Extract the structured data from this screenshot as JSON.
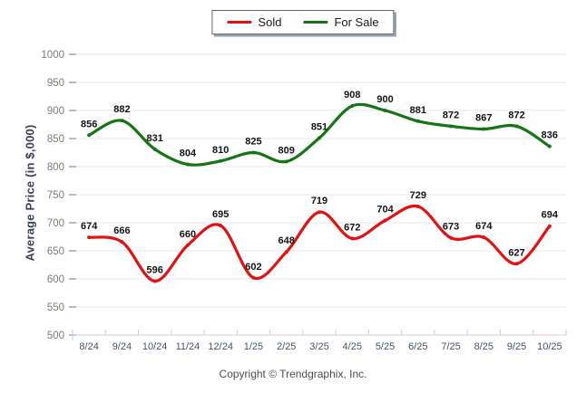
{
  "legend": {
    "items": [
      {
        "label": "Sold",
        "color": "#e01212"
      },
      {
        "label": "For Sale",
        "color": "#157515"
      }
    ]
  },
  "y_axis_title": "Average Price (in $,000)",
  "footer": "Copyright © Trendgraphix, Inc.",
  "chart_data": {
    "type": "line",
    "title": "",
    "xlabel": "",
    "ylabel": "Average Price (in $,000)",
    "categories": [
      "8/24",
      "9/24",
      "10/24",
      "11/24",
      "12/24",
      "1/25",
      "2/25",
      "3/25",
      "4/25",
      "5/25",
      "6/25",
      "7/25",
      "8/25",
      "9/25",
      "10/25"
    ],
    "series": [
      {
        "name": "Sold",
        "color": "#e01212",
        "values": [
          674,
          666,
          596,
          660,
          695,
          602,
          648,
          719,
          672,
          704,
          729,
          673,
          674,
          627,
          694
        ]
      },
      {
        "name": "For Sale",
        "color": "#157515",
        "values": [
          856,
          882,
          831,
          804,
          810,
          825,
          809,
          851,
          908,
          900,
          881,
          872,
          867,
          872,
          836
        ]
      }
    ],
    "ylim": [
      500,
      1000
    ],
    "ytick_step": 50,
    "grid": "horizontal",
    "legend_position": "top-center",
    "data_labels": true
  },
  "style": {
    "grid_color": "#e9e9e9",
    "baseline_color": "#cfcfcf",
    "y_tick_color": "#a7c3dc",
    "x_tick_color": "#c9d2da",
    "y_tick_label_color": "#7f7b75",
    "x_tick_label_color": "#44536b",
    "data_label_color": "#141414"
  }
}
